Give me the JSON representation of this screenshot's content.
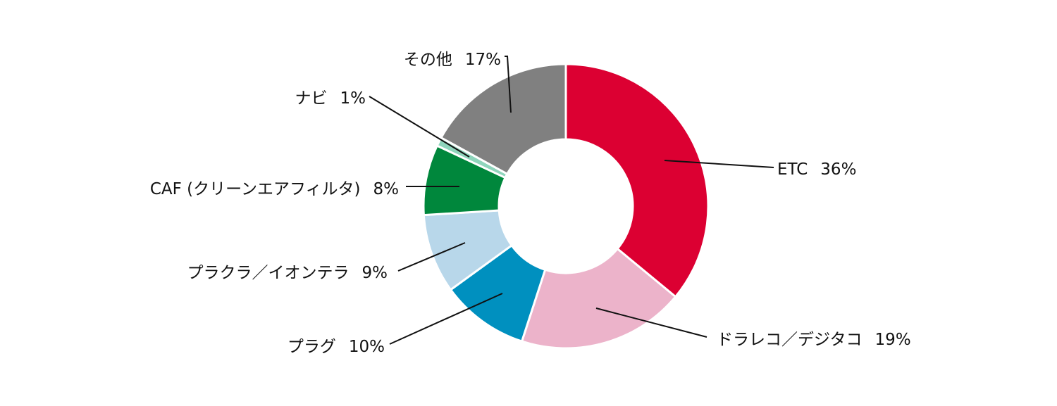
{
  "chart_data": {
    "type": "pie",
    "donut": true,
    "start": "top",
    "direction": "clockwise",
    "slices": [
      {
        "label": "ETC",
        "value": 36,
        "display": "36%",
        "color": "#dc0032"
      },
      {
        "label": "ドラレコ／デジタコ",
        "value": 19,
        "display": "19%",
        "color": "#ecb3ca"
      },
      {
        "label": "プラグ",
        "value": 10,
        "display": "10%",
        "color": "#0090bf"
      },
      {
        "label": "プラクラ／イオンテラ",
        "value": 9,
        "display": "9%",
        "color": "#b8d7ea"
      },
      {
        "label": "CAF (クリーンエアフィルタ)",
        "value": 8,
        "display": "8%",
        "color": "#00873c"
      },
      {
        "label": "ナビ",
        "value": 1,
        "display": "1%",
        "color": "#8fd5bc"
      },
      {
        "label": "その他",
        "value": 17,
        "display": "17%",
        "color": "#808080"
      }
    ]
  }
}
